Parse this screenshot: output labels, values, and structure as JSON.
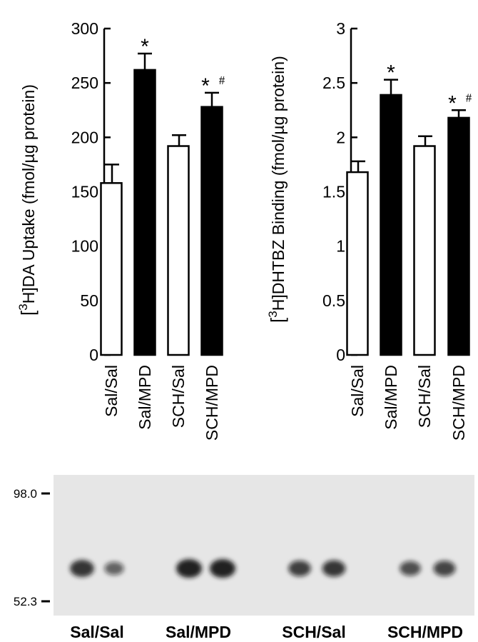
{
  "chart_data": [
    {
      "type": "bar",
      "ylabel_sup": "3",
      "ylabel": "H]DA Uptake (fmol/µg protein)",
      "ylabel_bracket": "[",
      "categories": [
        "Sal/Sal",
        "Sal/MPD",
        "SCH/Sal",
        "SCH/MPD"
      ],
      "values": [
        158,
        262,
        192,
        228
      ],
      "errors": [
        17,
        15,
        10,
        13
      ],
      "fills": [
        "white",
        "black",
        "white",
        "black"
      ],
      "markers": [
        "",
        "*",
        "",
        "* #"
      ],
      "ylim": [
        0,
        300
      ],
      "yticks": [
        "0",
        "50",
        "100",
        "150",
        "200",
        "250",
        "300"
      ],
      "ytick_values": [
        0,
        50,
        100,
        150,
        200,
        250,
        300
      ]
    },
    {
      "type": "bar",
      "ylabel_sup": "3",
      "ylabel": "H]DHTBZ Binding (fmol/µg protein)",
      "ylabel_bracket": "[",
      "categories": [
        "Sal/Sal",
        "Sal/MPD",
        "SCH/Sal",
        "SCH/MPD"
      ],
      "values": [
        1.68,
        2.39,
        1.92,
        2.18
      ],
      "errors": [
        0.1,
        0.14,
        0.09,
        0.07
      ],
      "fills": [
        "white",
        "black",
        "white",
        "black"
      ],
      "markers": [
        "",
        "*",
        "",
        "* #"
      ],
      "ylim": [
        0,
        3
      ],
      "yticks": [
        "0",
        "0.5",
        "1",
        "1.5",
        "2",
        "2.5",
        "3"
      ],
      "ytick_values": [
        0,
        0.5,
        1,
        1.5,
        2,
        2.5,
        3
      ]
    }
  ],
  "blot": {
    "markers": [
      "98.0",
      "52.3"
    ],
    "lane_labels": [
      "Sal/Sal",
      "Sal/MPD",
      "SCH/Sal",
      "SCH/MPD"
    ],
    "band_intensities": [
      0.85,
      0.45,
      1.0,
      1.0,
      0.72,
      0.78,
      0.6,
      0.68
    ],
    "colors": {
      "background": "#e6e6e6",
      "band": "#141414"
    }
  }
}
